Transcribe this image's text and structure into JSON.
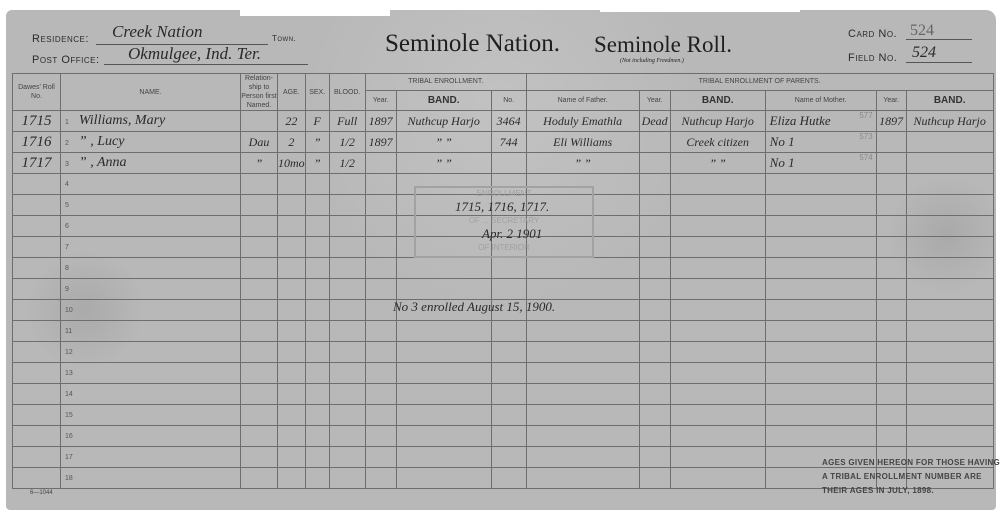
{
  "header": {
    "residence_label": "Residence:",
    "residence_value": "Creek Nation",
    "town_label": "Town.",
    "post_office_label": "Post Office:",
    "post_office_value": "Okmulgee, Ind. Ter.",
    "title_nation": "Seminole Nation.",
    "title_roll": "Seminole Roll.",
    "subtitle": "(Not including Freedmen.)",
    "card_no_label": "Card No.",
    "card_no_value": "524",
    "field_no_label": "Field No.",
    "field_no_value": "524"
  },
  "columns": {
    "dawes": "Dawes' Roll No.",
    "name": "NAME.",
    "relationship": "Relation-ship to Person first Named.",
    "age": "AGE.",
    "sex": "SEX.",
    "blood": "BLOOD.",
    "tribal_enrollment": "TRIBAL ENROLLMENT.",
    "year": "Year.",
    "band": "BAND.",
    "no": "No.",
    "tribal_enrollment_parents": "TRIBAL ENROLLMENT OF PARENTS.",
    "father": "Name of Father.",
    "mother": "Name of Mother."
  },
  "rows": [
    {
      "num": "1",
      "dawes": "1715",
      "name": "Williams, Mary",
      "rel": "",
      "age": "22",
      "sex": "F",
      "blood": "Full",
      "year": "1897",
      "band": "Nuthcup Harjo",
      "no": "3464",
      "father": "Hoduly Emathla",
      "fyear": "Dead",
      "fband": "Nuthcup Harjo",
      "mother": "Eliza Hutke",
      "myear": "1897",
      "mband": "Nuthcup Harjo",
      "mnote": "577"
    },
    {
      "num": "2",
      "dawes": "1716",
      "name": "” , Lucy",
      "rel": "Dau",
      "age": "2",
      "sex": "”",
      "blood": "1/2",
      "year": "1897",
      "band": "”  ”",
      "no": "744",
      "father": "Eli Williams",
      "fyear": "",
      "fband": "Creek citizen",
      "mother": "No 1",
      "myear": "",
      "mband": "",
      "mnote": "573"
    },
    {
      "num": "3",
      "dawes": "1717",
      "name": "” , Anna",
      "rel": "”",
      "age": "10mo",
      "sex": "”",
      "blood": "1/2",
      "year": "",
      "band": "”  ”",
      "no": "",
      "father": "”  ”",
      "fyear": "",
      "fband": "”  ”",
      "mother": "No 1",
      "myear": "",
      "mband": "",
      "mnote": "574"
    }
  ],
  "row_numbers": [
    "4",
    "5",
    "6",
    "7",
    "8",
    "9",
    "10",
    "11",
    "12",
    "13",
    "14",
    "15",
    "16",
    "17",
    "18"
  ],
  "annotations": {
    "stamp_lines": [
      "ENROLLMENT",
      "OF ... SECRETARY",
      "OF INTERIOR"
    ],
    "approval_numbers": "1715, 1716, 1717.",
    "approval_date": "Apr. 2 1901",
    "enrolled_note": "No 3 enrolled August 15, 1900."
  },
  "footer": {
    "form_number": "6—1044",
    "notice": [
      "AGES GIVEN HEREON FOR THOSE HAVING",
      "A TRIBAL ENROLLMENT NUMBER ARE",
      "THEIR AGES IN JULY, 1898."
    ]
  }
}
